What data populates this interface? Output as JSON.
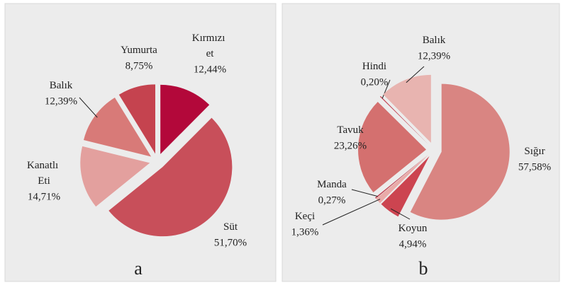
{
  "chart_data": [
    {
      "type": "pie",
      "caption": "a",
      "categories": [
        "Kırmızı et",
        "Süt",
        "Kanatlı Eti",
        "Balık",
        "Yumurta"
      ],
      "values": [
        12.44,
        51.7,
        14.71,
        12.39,
        8.75
      ],
      "value_labels": [
        "12,44%",
        "51,70%",
        "14,71%",
        "12,39%",
        "8,75%"
      ],
      "colors": [
        "#b3083a",
        "#c84f5a",
        "#e3a09e",
        "#d87a78",
        "#c5434f"
      ]
    },
    {
      "type": "pie",
      "caption": "b",
      "categories": [
        "Sığır",
        "Koyun",
        "Keçi",
        "Manda",
        "Tavuk",
        "Hindi",
        "Balık"
      ],
      "values": [
        57.58,
        4.94,
        1.36,
        0.27,
        23.26,
        0.2,
        12.39
      ],
      "value_labels": [
        "57,58%",
        "4,94%",
        "1,36%",
        "0,27%",
        "23,26%",
        "0,20%",
        "12,39%"
      ],
      "colors": [
        "#d98582",
        "#cc4450",
        "#e9aaa8",
        "#c04050",
        "#d4706f",
        "#c13848",
        "#e8b4b0"
      ]
    }
  ]
}
